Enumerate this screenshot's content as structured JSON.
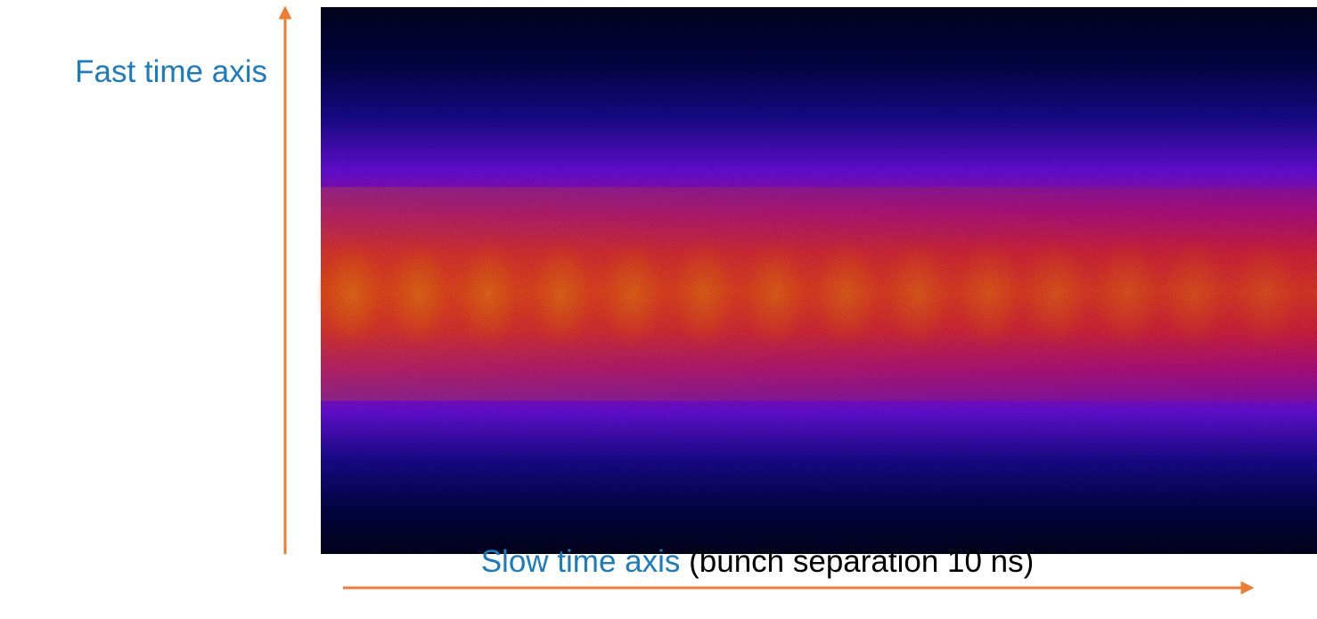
{
  "figure": {
    "y_axis_label": "Fast time axis",
    "x_axis_label": "Slow time axis",
    "x_axis_note": "(bunch separation 10 ns)"
  }
}
